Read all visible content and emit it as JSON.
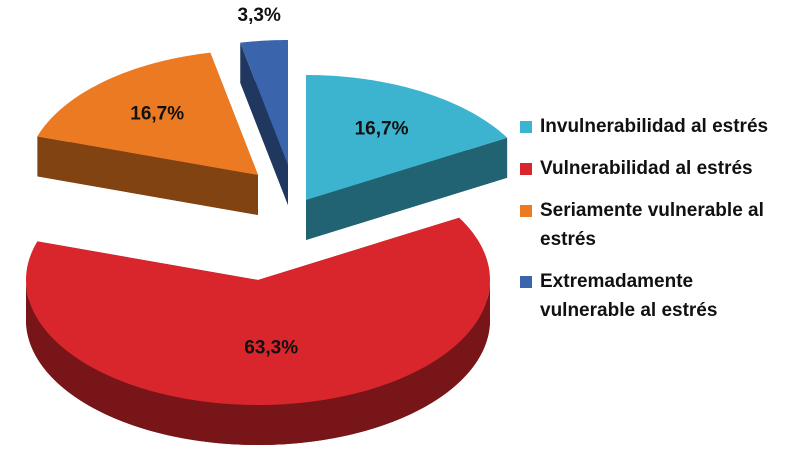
{
  "chart_data": {
    "type": "pie",
    "categories": [
      "Invulnerabilidad al estrés",
      "Vulnerabilidad al estrés",
      "Seriamente vulnerable al estrés",
      "Extremadamente vulnerable al estrés"
    ],
    "values": [
      16.7,
      63.3,
      16.7,
      3.3
    ],
    "value_labels": [
      "16,7%",
      "63,3%",
      "16,7%",
      "3,3%"
    ],
    "colors": [
      "#3cb4cf",
      "#d8262c",
      "#ec7a22",
      "#3a65ac"
    ]
  }
}
